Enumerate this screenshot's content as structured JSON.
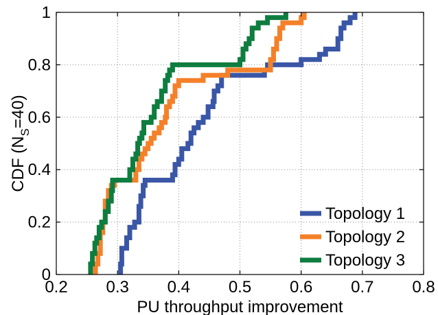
{
  "chart_data": {
    "type": "line",
    "xlabel": "PU throughput improvement",
    "ylabel": {
      "main": "CDF (N",
      "sub": "S",
      "tail": "=40)"
    },
    "xlim": [
      0.2,
      0.8
    ],
    "ylim": [
      0,
      1
    ],
    "x_ticks": [
      0.2,
      0.3,
      0.4,
      0.5,
      0.6,
      0.7,
      0.8
    ],
    "x_tick_labels": [
      "0.2",
      "0.3",
      "0.4",
      "0.5",
      "0.6",
      "0.7",
      "0.8"
    ],
    "y_ticks": [
      0,
      0.2,
      0.4,
      0.6,
      0.8,
      1
    ],
    "y_tick_labels": [
      "0",
      "0.2",
      "0.4",
      "0.6",
      "0.8",
      "1"
    ],
    "grid": true,
    "legend_position": "bottom-right",
    "series": [
      {
        "name": "Topology 1",
        "color": "#3a56a6",
        "points": [
          [
            0.305,
            0.0
          ],
          [
            0.305,
            0.04
          ],
          [
            0.307,
            0.04
          ],
          [
            0.307,
            0.1
          ],
          [
            0.315,
            0.1
          ],
          [
            0.315,
            0.14
          ],
          [
            0.32,
            0.14
          ],
          [
            0.32,
            0.18
          ],
          [
            0.328,
            0.18
          ],
          [
            0.328,
            0.2
          ],
          [
            0.335,
            0.2
          ],
          [
            0.335,
            0.26
          ],
          [
            0.338,
            0.26
          ],
          [
            0.338,
            0.3
          ],
          [
            0.342,
            0.3
          ],
          [
            0.342,
            0.34
          ],
          [
            0.345,
            0.34
          ],
          [
            0.345,
            0.36
          ],
          [
            0.39,
            0.36
          ],
          [
            0.39,
            0.38
          ],
          [
            0.394,
            0.38
          ],
          [
            0.394,
            0.42
          ],
          [
            0.4,
            0.42
          ],
          [
            0.4,
            0.44
          ],
          [
            0.405,
            0.44
          ],
          [
            0.405,
            0.48
          ],
          [
            0.415,
            0.48
          ],
          [
            0.415,
            0.5
          ],
          [
            0.42,
            0.5
          ],
          [
            0.42,
            0.54
          ],
          [
            0.425,
            0.54
          ],
          [
            0.425,
            0.56
          ],
          [
            0.432,
            0.56
          ],
          [
            0.432,
            0.58
          ],
          [
            0.44,
            0.58
          ],
          [
            0.44,
            0.6
          ],
          [
            0.448,
            0.6
          ],
          [
            0.448,
            0.64
          ],
          [
            0.456,
            0.64
          ],
          [
            0.456,
            0.66
          ],
          [
            0.458,
            0.66
          ],
          [
            0.458,
            0.7
          ],
          [
            0.464,
            0.7
          ],
          [
            0.464,
            0.72
          ],
          [
            0.47,
            0.72
          ],
          [
            0.47,
            0.76
          ],
          [
            0.54,
            0.76
          ],
          [
            0.54,
            0.78
          ],
          [
            0.545,
            0.78
          ],
          [
            0.545,
            0.8
          ],
          [
            0.6,
            0.8
          ],
          [
            0.6,
            0.82
          ],
          [
            0.63,
            0.82
          ],
          [
            0.63,
            0.84
          ],
          [
            0.64,
            0.84
          ],
          [
            0.64,
            0.86
          ],
          [
            0.66,
            0.86
          ],
          [
            0.66,
            0.9
          ],
          [
            0.665,
            0.9
          ],
          [
            0.665,
            0.94
          ],
          [
            0.67,
            0.94
          ],
          [
            0.67,
            0.96
          ],
          [
            0.68,
            0.96
          ],
          [
            0.68,
            0.98
          ],
          [
            0.688,
            0.98
          ],
          [
            0.688,
            1.0
          ]
        ]
      },
      {
        "name": "Topology 2",
        "color": "#f4812a",
        "points": [
          [
            0.264,
            0.0
          ],
          [
            0.264,
            0.04
          ],
          [
            0.268,
            0.04
          ],
          [
            0.268,
            0.08
          ],
          [
            0.272,
            0.08
          ],
          [
            0.272,
            0.16
          ],
          [
            0.276,
            0.16
          ],
          [
            0.276,
            0.2
          ],
          [
            0.28,
            0.2
          ],
          [
            0.28,
            0.28
          ],
          [
            0.285,
            0.28
          ],
          [
            0.285,
            0.32
          ],
          [
            0.29,
            0.32
          ],
          [
            0.29,
            0.34
          ],
          [
            0.295,
            0.34
          ],
          [
            0.295,
            0.36
          ],
          [
            0.33,
            0.36
          ],
          [
            0.33,
            0.4
          ],
          [
            0.335,
            0.4
          ],
          [
            0.335,
            0.44
          ],
          [
            0.34,
            0.44
          ],
          [
            0.34,
            0.46
          ],
          [
            0.345,
            0.46
          ],
          [
            0.345,
            0.48
          ],
          [
            0.35,
            0.48
          ],
          [
            0.35,
            0.5
          ],
          [
            0.355,
            0.5
          ],
          [
            0.355,
            0.52
          ],
          [
            0.36,
            0.52
          ],
          [
            0.36,
            0.54
          ],
          [
            0.368,
            0.54
          ],
          [
            0.368,
            0.56
          ],
          [
            0.372,
            0.56
          ],
          [
            0.372,
            0.58
          ],
          [
            0.378,
            0.58
          ],
          [
            0.378,
            0.6
          ],
          [
            0.38,
            0.6
          ],
          [
            0.38,
            0.64
          ],
          [
            0.385,
            0.64
          ],
          [
            0.385,
            0.66
          ],
          [
            0.39,
            0.66
          ],
          [
            0.39,
            0.68
          ],
          [
            0.394,
            0.68
          ],
          [
            0.394,
            0.72
          ],
          [
            0.4,
            0.72
          ],
          [
            0.4,
            0.74
          ],
          [
            0.44,
            0.74
          ],
          [
            0.44,
            0.76
          ],
          [
            0.48,
            0.76
          ],
          [
            0.48,
            0.78
          ],
          [
            0.55,
            0.78
          ],
          [
            0.55,
            0.82
          ],
          [
            0.555,
            0.82
          ],
          [
            0.555,
            0.86
          ],
          [
            0.56,
            0.86
          ],
          [
            0.56,
            0.9
          ],
          [
            0.565,
            0.9
          ],
          [
            0.565,
            0.94
          ],
          [
            0.57,
            0.94
          ],
          [
            0.57,
            0.96
          ],
          [
            0.6,
            0.96
          ],
          [
            0.6,
            0.98
          ],
          [
            0.605,
            0.98
          ],
          [
            0.605,
            1.0
          ]
        ]
      },
      {
        "name": "Topology 3",
        "color": "#0e7d3f",
        "points": [
          [
            0.256,
            0.0
          ],
          [
            0.256,
            0.04
          ],
          [
            0.259,
            0.04
          ],
          [
            0.259,
            0.08
          ],
          [
            0.263,
            0.08
          ],
          [
            0.263,
            0.12
          ],
          [
            0.266,
            0.12
          ],
          [
            0.266,
            0.14
          ],
          [
            0.27,
            0.14
          ],
          [
            0.27,
            0.18
          ],
          [
            0.274,
            0.18
          ],
          [
            0.274,
            0.2
          ],
          [
            0.28,
            0.2
          ],
          [
            0.28,
            0.24
          ],
          [
            0.285,
            0.24
          ],
          [
            0.285,
            0.28
          ],
          [
            0.29,
            0.28
          ],
          [
            0.29,
            0.32
          ],
          [
            0.292,
            0.32
          ],
          [
            0.292,
            0.36
          ],
          [
            0.32,
            0.36
          ],
          [
            0.32,
            0.4
          ],
          [
            0.325,
            0.4
          ],
          [
            0.325,
            0.44
          ],
          [
            0.33,
            0.44
          ],
          [
            0.33,
            0.46
          ],
          [
            0.333,
            0.46
          ],
          [
            0.333,
            0.5
          ],
          [
            0.336,
            0.5
          ],
          [
            0.336,
            0.52
          ],
          [
            0.34,
            0.52
          ],
          [
            0.34,
            0.54
          ],
          [
            0.343,
            0.54
          ],
          [
            0.343,
            0.58
          ],
          [
            0.355,
            0.58
          ],
          [
            0.355,
            0.6
          ],
          [
            0.36,
            0.6
          ],
          [
            0.36,
            0.64
          ],
          [
            0.365,
            0.64
          ],
          [
            0.365,
            0.66
          ],
          [
            0.372,
            0.66
          ],
          [
            0.372,
            0.7
          ],
          [
            0.378,
            0.7
          ],
          [
            0.378,
            0.74
          ],
          [
            0.382,
            0.74
          ],
          [
            0.382,
            0.76
          ],
          [
            0.385,
            0.76
          ],
          [
            0.385,
            0.78
          ],
          [
            0.39,
            0.78
          ],
          [
            0.39,
            0.8
          ],
          [
            0.5,
            0.8
          ],
          [
            0.5,
            0.82
          ],
          [
            0.505,
            0.82
          ],
          [
            0.505,
            0.86
          ],
          [
            0.51,
            0.86
          ],
          [
            0.51,
            0.88
          ],
          [
            0.515,
            0.88
          ],
          [
            0.515,
            0.9
          ],
          [
            0.52,
            0.9
          ],
          [
            0.52,
            0.94
          ],
          [
            0.53,
            0.94
          ],
          [
            0.53,
            0.96
          ],
          [
            0.545,
            0.96
          ],
          [
            0.545,
            0.98
          ],
          [
            0.575,
            0.98
          ],
          [
            0.575,
            1.0
          ]
        ]
      }
    ]
  }
}
